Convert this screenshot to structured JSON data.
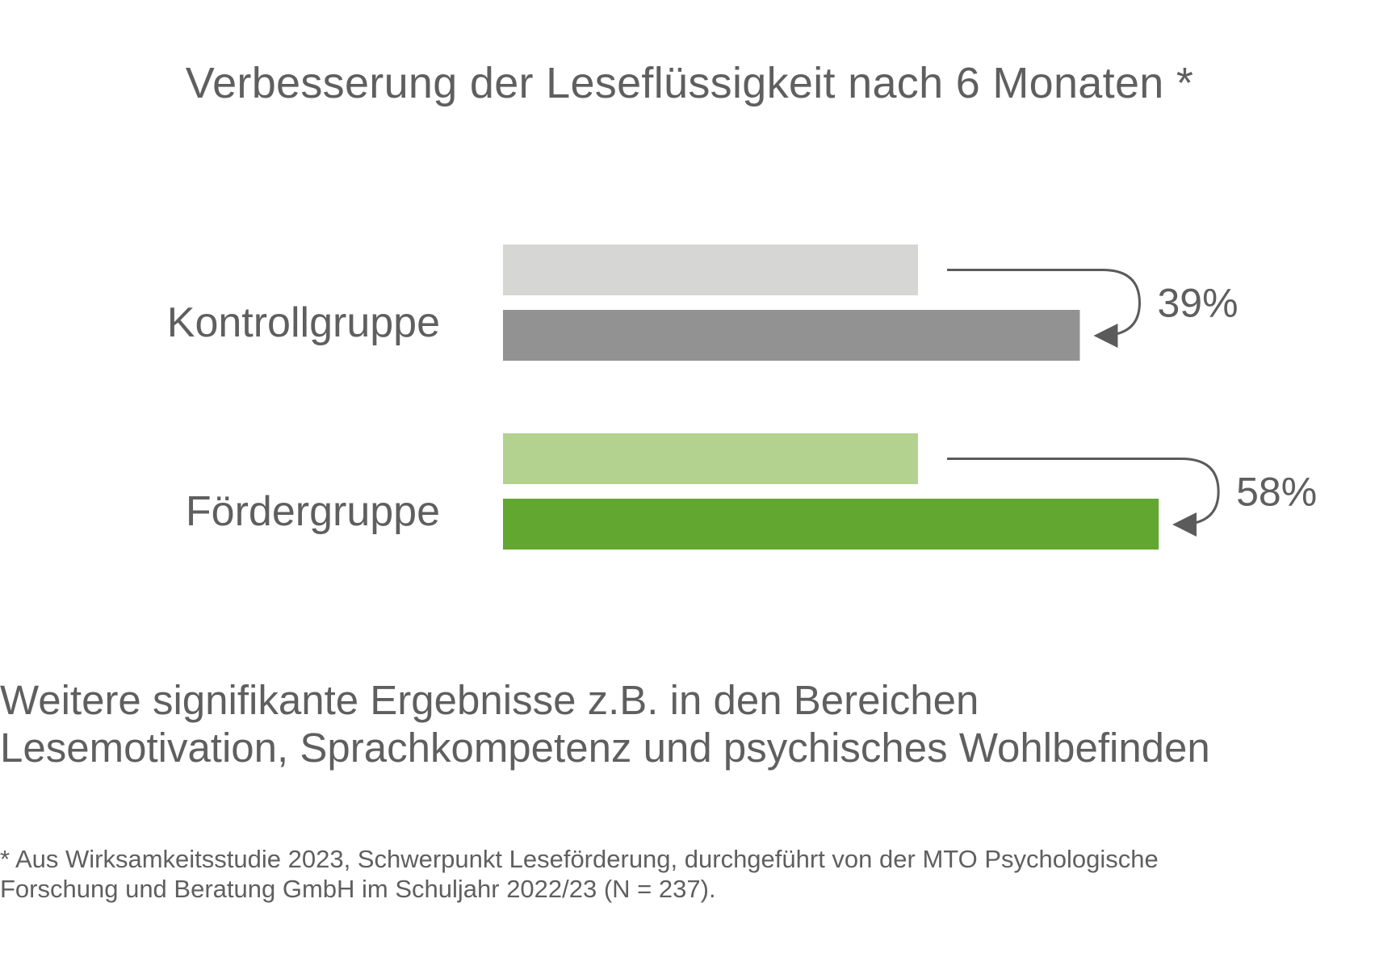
{
  "title": "Verbesserung der Leseflüssigkeit nach 6 Monaten *",
  "chart_data": {
    "type": "bar",
    "orientation": "horizontal",
    "title": "Verbesserung der Leseflüssigkeit nach 6 Monaten *",
    "categories": [
      "Kontrollgruppe",
      "Fördergruppe"
    ],
    "groups": [
      {
        "name": "Kontrollgruppe",
        "before": 100,
        "after": 139,
        "change_label": "39%",
        "colors": {
          "before": "#d6d6d5",
          "after": "#929292"
        }
      },
      {
        "name": "Fördergruppe",
        "before": 100,
        "after": 158,
        "change_label": "58%",
        "colors": {
          "before": "#b3d28f",
          "after": "#62a730"
        }
      }
    ],
    "xlim": [
      0,
      160
    ],
    "grid": false,
    "axes_visible": false,
    "annotation_arrow_color": "#5b5b5b"
  },
  "summary": {
    "line1": "Weitere signifikante Ergebnisse z.B. in den Bereichen",
    "line2": "Lesemotivation, Sprachkompetenz und psychisches Wohlbefinden"
  },
  "footnote": {
    "line1": "* Aus Wirksamkeitsstudie 2023, Schwerpunkt Leseförderung, durchgeführt von der MTO Psychologische",
    "line2": "Forschung und Beratung GmbH im Schuljahr 2022/23 (N = 237)."
  }
}
